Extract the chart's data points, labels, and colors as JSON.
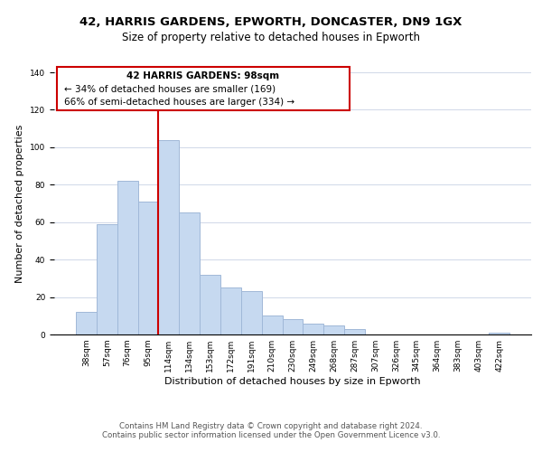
{
  "title": "42, HARRIS GARDENS, EPWORTH, DONCASTER, DN9 1GX",
  "subtitle": "Size of property relative to detached houses in Epworth",
  "xlabel": "Distribution of detached houses by size in Epworth",
  "ylabel": "Number of detached properties",
  "bar_labels": [
    "38sqm",
    "57sqm",
    "76sqm",
    "95sqm",
    "114sqm",
    "134sqm",
    "153sqm",
    "172sqm",
    "191sqm",
    "210sqm",
    "230sqm",
    "249sqm",
    "268sqm",
    "287sqm",
    "307sqm",
    "326sqm",
    "345sqm",
    "364sqm",
    "383sqm",
    "403sqm",
    "422sqm"
  ],
  "bar_values": [
    12,
    59,
    82,
    71,
    104,
    65,
    32,
    25,
    23,
    10,
    8,
    6,
    5,
    3,
    0,
    0,
    0,
    0,
    0,
    0,
    1
  ],
  "bar_color": "#c6d9f0",
  "bar_edge_color": "#a0b8d8",
  "vline_x": 3.5,
  "vline_color": "#cc0000",
  "ylim": [
    0,
    140
  ],
  "annotation_title": "42 HARRIS GARDENS: 98sqm",
  "annotation_line1": "← 34% of detached houses are smaller (169)",
  "annotation_line2": "66% of semi-detached houses are larger (334) →",
  "annotation_box_color": "#ffffff",
  "annotation_box_edge": "#cc0000",
  "footer1": "Contains HM Land Registry data © Crown copyright and database right 2024.",
  "footer2": "Contains public sector information licensed under the Open Government Licence v3.0.",
  "title_fontsize": 9.5,
  "subtitle_fontsize": 8.5,
  "axis_label_fontsize": 8,
  "tick_fontsize": 6.5,
  "annotation_fontsize": 7.5,
  "footer_fontsize": 6.2
}
